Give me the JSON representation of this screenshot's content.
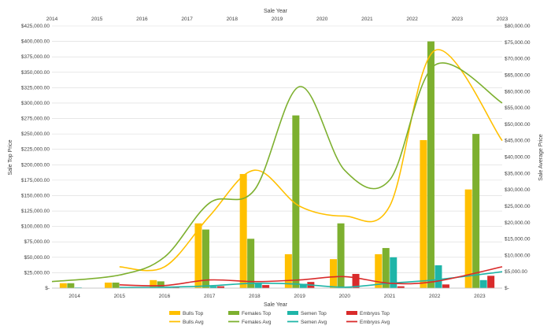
{
  "chart_data": {
    "type": "bar",
    "x_title_top": "Sale Year",
    "x_title_bottom": "Sale Year",
    "y_title_left": "Sale Top Price",
    "y_title_right": "Sale Average Price",
    "categories": [
      "2014",
      "2015",
      "2016",
      "2017",
      "2018",
      "2019",
      "2020",
      "2021",
      "2022",
      "2023"
    ],
    "top_axis_labels": [
      "2014",
      "2015",
      "2016",
      "2017",
      "2018",
      "2019",
      "2020",
      "2021",
      "2022",
      "2023"
    ],
    "y_left_ticks": [
      "$-",
      "$25,000.00",
      "$50,000.00",
      "$75,000.00",
      "$100,000.00",
      "$125,000.00",
      "$150,000.00",
      "$175,000.00",
      "$200,000.00",
      "$225,000.00",
      "$250,000.00",
      "$275,000.00",
      "$300,000.00",
      "$325,000.00",
      "$350,000.00",
      "$375,000.00",
      "$400,000.00",
      "$425,000.00"
    ],
    "y_right_ticks": [
      "$-",
      "$5,000.00",
      "$10,000.00",
      "$15,000.00",
      "$20,000.00",
      "$25,000.00",
      "$30,000.00",
      "$35,000.00",
      "$40,000.00",
      "$45,000.00",
      "$50,000.00",
      "$55,000.00",
      "$60,000.00",
      "$65,000.00",
      "$70,000.00",
      "$75,000.00",
      "$80,000.00"
    ],
    "y_left_range": [
      0,
      425000
    ],
    "y_right_range": [
      0,
      80000
    ],
    "grid": true,
    "legend_position": "bottom",
    "bar_series": [
      {
        "name": "Bulls Top",
        "color": "#FFC000",
        "values": [
          8000,
          9000,
          13000,
          105000,
          185000,
          55000,
          47000,
          55000,
          240000,
          160000
        ]
      },
      {
        "name": "Females Top",
        "color": "#7DB02F",
        "values": [
          8000,
          9000,
          11000,
          95000,
          80000,
          280000,
          105000,
          65000,
          400000,
          250000
        ]
      },
      {
        "name": "Semen Top",
        "color": "#1FB5A8",
        "values": [
          1000,
          1000,
          2000,
          3000,
          7000,
          7000,
          2000,
          50000,
          37000,
          13000
        ]
      },
      {
        "name": "Embryos Top",
        "color": "#D92B2B",
        "values": [
          0,
          1000,
          2000,
          3000,
          5000,
          10000,
          23000,
          3000,
          6000,
          20000
        ]
      }
    ],
    "line_series": [
      {
        "name": "Bulls Avg",
        "color": "#FFC000",
        "values": [
          null,
          6500,
          6500,
          22000,
          36000,
          25000,
          22000,
          25000,
          72500,
          45000
        ]
      },
      {
        "name": "Females Avg",
        "color": "#7DB02F",
        "values": [
          2000,
          4000,
          9500,
          26000,
          30000,
          61500,
          36000,
          33000,
          68000,
          56500
        ]
      },
      {
        "name": "Semen Avg",
        "color": "#1FB5A8",
        "values": [
          null,
          200,
          300,
          700,
          1500,
          1200,
          300,
          1500,
          2500,
          5000
        ]
      },
      {
        "name": "Embryos Avg",
        "color": "#D92B2B",
        "values": [
          null,
          1000,
          800,
          2500,
          2000,
          2500,
          3500,
          1500,
          2000,
          6500
        ]
      }
    ]
  }
}
